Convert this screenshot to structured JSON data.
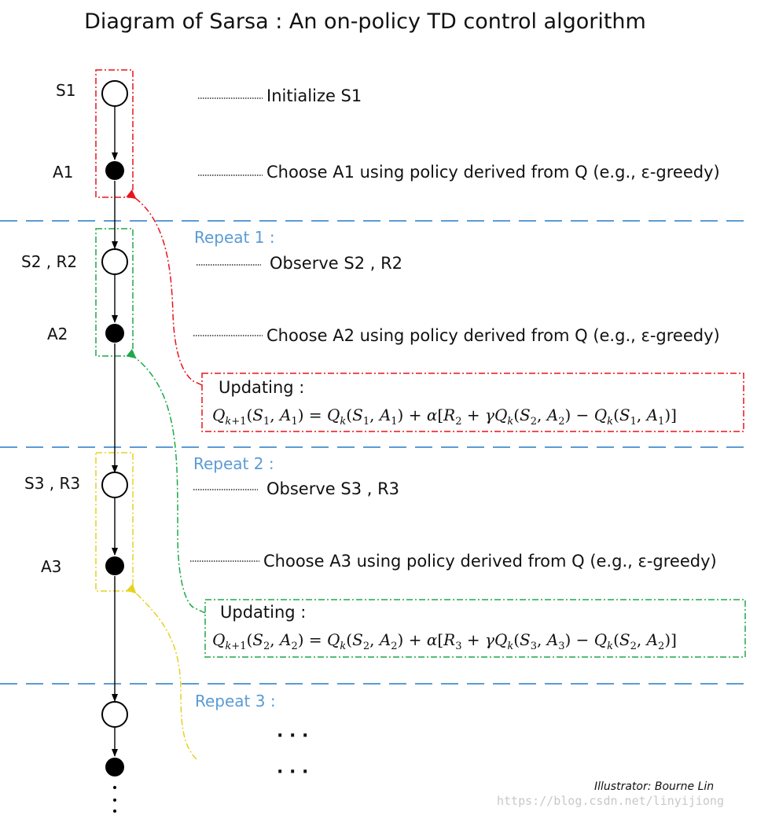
{
  "title": "Diagram of Sarsa : An on-policy TD control algorithm",
  "nodes": [
    {
      "label": "S1",
      "type": "state"
    },
    {
      "label": "A1",
      "type": "action"
    },
    {
      "label": "S2 , R2",
      "type": "state"
    },
    {
      "label": "A2",
      "type": "action"
    },
    {
      "label": "S3 , R3",
      "type": "state"
    },
    {
      "label": "A3",
      "type": "action"
    },
    {
      "label": "",
      "type": "state"
    },
    {
      "label": "",
      "type": "action"
    }
  ],
  "steps": [
    "Initialize S1",
    "Choose A1 using policy derived from Q (e.g., ε-greedy)",
    "Observe S2 , R2",
    "Choose A2 using policy derived from Q (e.g., ε-greedy)",
    "Observe S3 , R3",
    "Choose A3 using policy derived from Q (e.g., ε-greedy)"
  ],
  "repeats": [
    "Repeat 1 :",
    "Repeat 2 :",
    "Repeat 3 :"
  ],
  "updates": [
    {
      "title": "Updating :",
      "formula": {
        "lhs_state": "S",
        "lhs_state_idx": "1",
        "lhs_action": "A",
        "lhs_action_idx": "1",
        "reward_idx": "2",
        "next_state_idx": "2",
        "next_action_idx": "2"
      }
    },
    {
      "title": "Updating :",
      "formula": {
        "lhs_state": "S",
        "lhs_state_idx": "2",
        "lhs_action": "A",
        "lhs_action_idx": "2",
        "reward_idx": "3",
        "next_state_idx": "3",
        "next_action_idx": "3"
      }
    }
  ],
  "ellipsis": "·   ·   ·",
  "credit": "Illustrator: Bourne Lin",
  "watermark": "https://blog.csdn.net/linyijiong",
  "colors": {
    "red": "#e8141c",
    "green": "#1ea84a",
    "yellow": "#e6d21e",
    "blue": "#5b9bd5",
    "black": "#000000"
  }
}
